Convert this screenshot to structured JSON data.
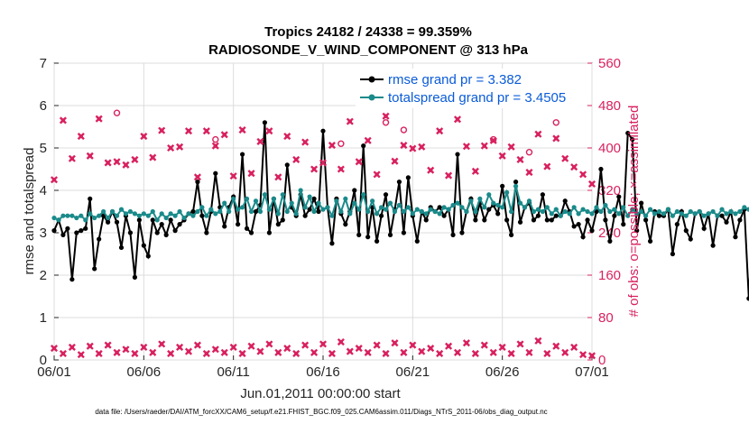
{
  "chart_data": {
    "type": "line",
    "title": "Tropics 24182 / 24338 = 99.359%",
    "subtitle": "RADIOSONDE_V_WIND_COMPONENT @ 313 hPa",
    "xlabel": "Jun.01,2011 00:00:00 start",
    "ylabel": "rmse and totalspread",
    "ylabel_right": "# of obs: o=possible; ×=assimilated",
    "x_tick_labels": [
      "06/01",
      "06/06",
      "06/11",
      "06/16",
      "06/21",
      "06/26",
      "07/01"
    ],
    "x_range_days": [
      0,
      30
    ],
    "ylim": [
      0,
      7
    ],
    "y_ticks": [
      "0",
      "1",
      "2",
      "3",
      "4",
      "5",
      "6",
      "7"
    ],
    "ylim_right": [
      0,
      560
    ],
    "y_ticks_right": [
      "0",
      "80",
      "160",
      "240",
      "320",
      "400",
      "480",
      "560"
    ],
    "footer": "data file: /Users/raeder/DAI/ATM_forcXX/CAM6_setup/f.e21.FHIST_BGC.f09_025.CAM6assim.011/Diags_NTrS_2011-06/obs_diag_output.nc",
    "series": [
      {
        "name": "rmse grand pr = 3.382",
        "color": "#000000",
        "axis": "left",
        "x_start_day": 0,
        "x_step_day": 0.25,
        "values": [
          3.05,
          3.3,
          2.95,
          3.1,
          1.9,
          3.0,
          3.05,
          3.1,
          3.8,
          2.15,
          2.85,
          3.4,
          3.25,
          3.5,
          3.25,
          2.65,
          3.4,
          3.0,
          1.95,
          3.3,
          2.7,
          2.45,
          3.3,
          3.0,
          3.2,
          2.95,
          3.3,
          3.05,
          3.2,
          3.3,
          3.45,
          3.5,
          4.2,
          3.4,
          3.0,
          3.5,
          4.4,
          3.6,
          3.15,
          3.6,
          3.85,
          3.2,
          4.85,
          3.1,
          3.0,
          3.5,
          3.65,
          5.6,
          3.0,
          3.8,
          3.2,
          3.3,
          4.6,
          3.6,
          3.4,
          3.9,
          3.4,
          3.55,
          3.8,
          3.5,
          5.4,
          3.6,
          2.75,
          3.8,
          3.45,
          3.2,
          3.5,
          4.0,
          2.95,
          5.05,
          2.9,
          3.6,
          2.8,
          3.4,
          3.9,
          2.95,
          3.55,
          4.2,
          3.0,
          4.3,
          3.4,
          2.8,
          3.5,
          3.3,
          3.6,
          3.5,
          3.6,
          3.4,
          3.55,
          2.95,
          4.85,
          3.0,
          3.5,
          3.8,
          3.3,
          3.7,
          3.3,
          3.55,
          3.65,
          3.45,
          4.1,
          3.3,
          2.95,
          4.2,
          3.25,
          3.6,
          3.7,
          3.3,
          3.4,
          3.9,
          3.3,
          3.3,
          3.4,
          3.4,
          3.75,
          3.5,
          3.15,
          3.2,
          2.9,
          3.3,
          3.05,
          3.5,
          4.5,
          3.3,
          2.8,
          3.4,
          3.85,
          3.2,
          5.35,
          5.2,
          3.05,
          3.7,
          3.3,
          2.8,
          3.5,
          3.4,
          3.4,
          3.55,
          2.5,
          3.2,
          3.5,
          3.05,
          2.85,
          3.45,
          3.5,
          3.1,
          3.45,
          2.7,
          3.4,
          3.4,
          3.25,
          3.5,
          2.9,
          3.3,
          3.55,
          1.45,
          3.6,
          3.2,
          3.35,
          4.6,
          3.6,
          3.3,
          5.7,
          3.4,
          3.2,
          4.05,
          3.1,
          3.55,
          3.0,
          3.25,
          2.85,
          3.2,
          3.05,
          2.8,
          3.4,
          2.5,
          2.75,
          2.95
        ]
      },
      {
        "name": "totalspread grand pr = 3.4505",
        "color": "#1a8a8a",
        "axis": "left",
        "x_start_day": 0,
        "x_step_day": 0.25,
        "values": [
          3.35,
          3.3,
          3.4,
          3.4,
          3.4,
          3.35,
          3.4,
          3.3,
          3.45,
          3.35,
          3.4,
          3.5,
          3.35,
          3.5,
          3.4,
          3.55,
          3.45,
          3.5,
          3.45,
          3.4,
          3.45,
          3.4,
          3.5,
          3.3,
          3.45,
          3.35,
          3.45,
          3.4,
          3.5,
          3.35,
          3.45,
          3.4,
          3.5,
          3.6,
          3.4,
          3.55,
          3.45,
          3.5,
          3.7,
          3.5,
          3.8,
          3.55,
          3.6,
          3.8,
          3.5,
          3.75,
          3.5,
          3.9,
          3.55,
          3.8,
          3.45,
          3.9,
          3.5,
          3.7,
          3.45,
          4.0,
          3.6,
          3.85,
          3.5,
          3.7,
          3.55,
          3.6,
          3.4,
          3.75,
          3.5,
          3.8,
          3.45,
          3.7,
          3.55,
          3.9,
          3.5,
          3.75,
          3.45,
          3.6,
          3.55,
          3.7,
          3.5,
          3.65,
          3.5,
          3.6,
          3.45,
          3.55,
          3.5,
          3.45,
          3.55,
          3.5,
          3.45,
          3.6,
          3.55,
          3.65,
          3.7,
          3.6,
          3.5,
          3.75,
          3.5,
          3.8,
          3.6,
          3.9,
          3.7,
          3.65,
          3.6,
          3.95,
          3.5,
          4.1,
          3.7,
          3.6,
          3.75,
          3.5,
          3.55,
          3.5,
          3.6,
          3.45,
          3.55,
          3.4,
          3.5,
          3.45,
          3.6,
          3.45,
          3.55,
          3.5,
          3.45,
          3.6,
          3.5,
          3.65,
          3.5,
          3.55,
          3.45,
          3.6,
          3.4,
          3.55,
          3.45,
          3.5,
          3.4,
          3.55,
          3.45,
          3.5,
          3.45,
          3.55,
          3.4,
          3.5,
          3.45,
          3.4,
          3.5,
          3.45,
          3.5,
          3.4,
          3.45,
          3.5,
          3.4,
          3.55,
          3.45,
          3.5,
          3.45,
          3.5,
          3.6,
          3.55,
          3.45,
          3.65,
          3.5,
          3.7,
          3.6,
          3.8,
          3.4,
          3.6,
          3.85,
          3.5,
          3.65,
          3.4,
          3.6,
          3.35,
          3.55,
          3.5,
          3.6,
          3.4,
          3.5,
          3.35,
          4.0,
          3.35,
          3.45,
          3.4,
          3.55,
          3.6
        ]
      },
      {
        "name": "obs possible",
        "marker": "o",
        "color": "#d8215f",
        "axis": "right",
        "x_days": [
          3.5,
          9.0,
          16.0,
          18.5,
          19.5,
          24.5,
          26.5,
          28.0
        ],
        "values": [
          466,
          416,
          408,
          448,
          434,
          416,
          392,
          448
        ]
      },
      {
        "name": "obs assimilated (upper)",
        "marker": "x",
        "color": "#d8215f",
        "axis": "right",
        "x_days": [
          0,
          0.5,
          1,
          1.5,
          2,
          2.5,
          3,
          3.5,
          4,
          4.5,
          5,
          5.5,
          6,
          6.5,
          7,
          7.5,
          8,
          8.5,
          9,
          9.5,
          10,
          10.5,
          11,
          11.5,
          12,
          12.5,
          13,
          13.5,
          14,
          14.5,
          15,
          15.5,
          16,
          16.5,
          17,
          17.5,
          18,
          18.5,
          19,
          19.5,
          20,
          20.5,
          21,
          21.5,
          22,
          22.5,
          23,
          23.5,
          24,
          24.5,
          25,
          25.5,
          26,
          26.5,
          27,
          27.5,
          28,
          28.5,
          29,
          29.5,
          30
        ],
        "values": [
          340,
          452,
          380,
          422,
          385,
          455,
          372,
          374,
          368,
          378,
          422,
          382,
          433,
          400,
          402,
          432,
          345,
          432,
          404,
          425,
          347,
          434,
          352,
          412,
          432,
          345,
          422,
          378,
          411,
          360,
          372,
          405,
          360,
          450,
          374,
          414,
          350,
          460,
          375,
          405,
          399,
          402,
          358,
          432,
          348,
          454,
          403,
          356,
          404,
          414,
          385,
          402,
          378,
          354,
          426,
          365,
          418,
          380,
          364,
          350,
          332
        ]
      },
      {
        "name": "obs assimilated (lower)",
        "marker": "x",
        "color": "#d8215f",
        "axis": "right",
        "x_days": [
          0,
          0.5,
          1,
          1.5,
          2,
          2.5,
          3,
          3.5,
          4,
          4.5,
          5,
          5.5,
          6,
          6.5,
          7,
          7.5,
          8,
          8.5,
          9,
          9.5,
          10,
          10.5,
          11,
          11.5,
          12,
          12.5,
          13,
          13.5,
          14,
          14.5,
          15,
          15.5,
          16,
          16.5,
          17,
          17.5,
          18,
          18.5,
          19,
          19.5,
          20,
          20.5,
          21,
          21.5,
          22,
          22.5,
          23,
          23.5,
          24,
          24.5,
          25,
          25.5,
          26,
          26.5,
          27,
          27.5,
          28,
          28.5,
          29,
          29.5,
          30
        ],
        "values": [
          22,
          12,
          24,
          10,
          26,
          12,
          28,
          14,
          20,
          12,
          24,
          14,
          30,
          12,
          24,
          16,
          28,
          12,
          20,
          14,
          24,
          12,
          26,
          16,
          30,
          14,
          22,
          12,
          28,
          14,
          30,
          12,
          34,
          16,
          22,
          14,
          28,
          12,
          32,
          14,
          28,
          16,
          22,
          12,
          26,
          14,
          32,
          12,
          28,
          14,
          24,
          12,
          30,
          14,
          36,
          12,
          26,
          14,
          24,
          10,
          8
        ]
      }
    ]
  }
}
